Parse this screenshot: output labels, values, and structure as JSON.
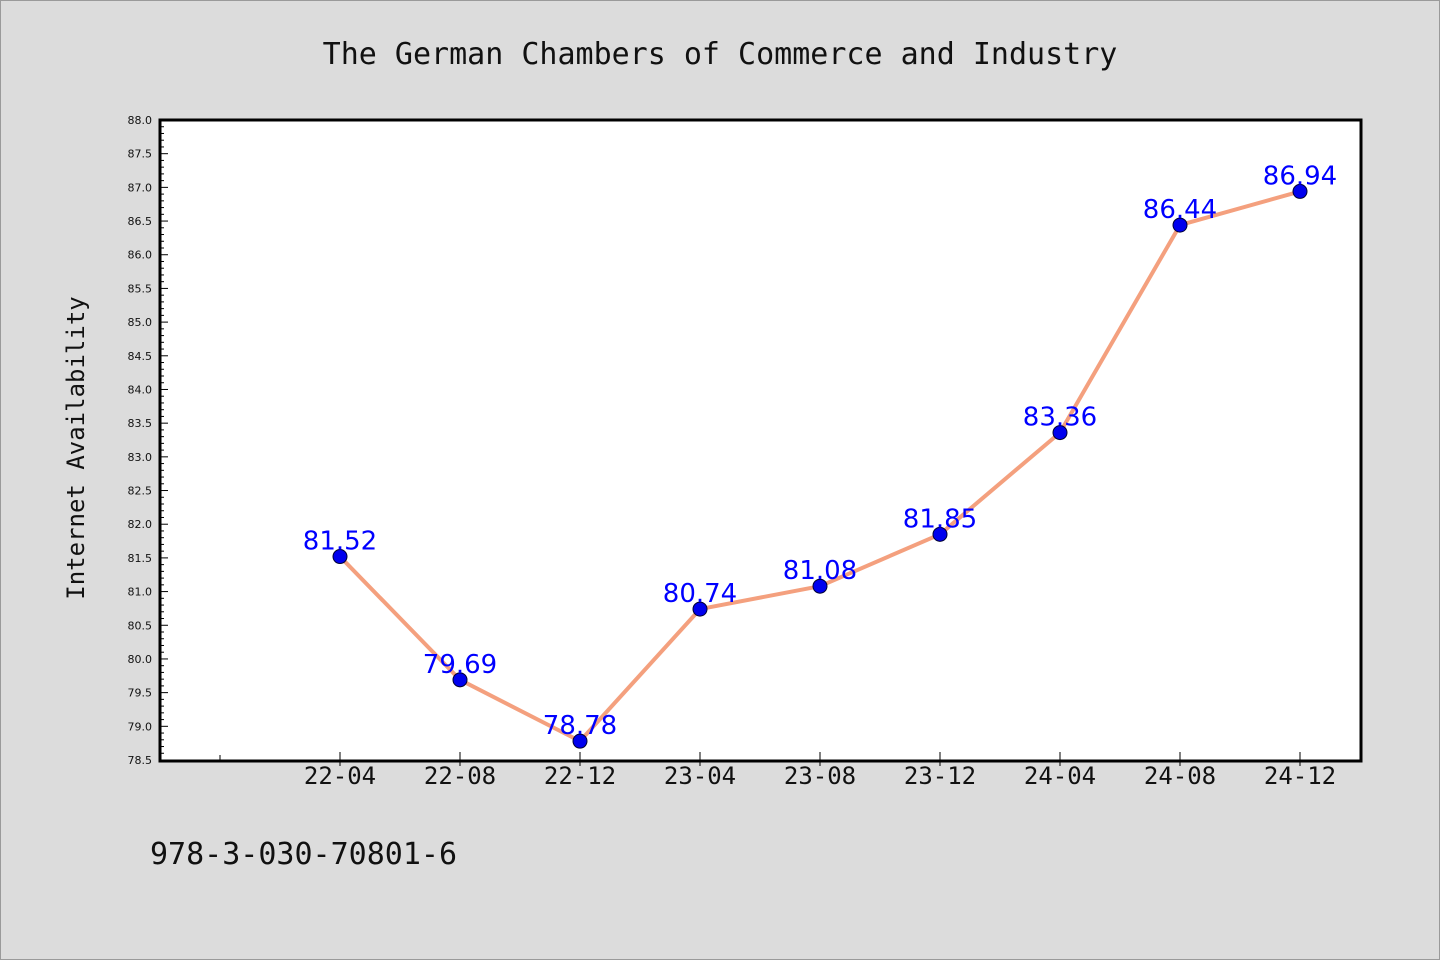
{
  "chart_data": {
    "type": "line",
    "title": "The German Chambers of Commerce and Industry",
    "xlabel": "",
    "ylabel": "Internet Availability",
    "categories": [
      "22-04",
      "22-08",
      "22-12",
      "23-04",
      "23-08",
      "23-12",
      "24-04",
      "24-08",
      "24-12"
    ],
    "series": [
      {
        "values": [
          81.52,
          79.69,
          78.78,
          80.74,
          81.08,
          81.85,
          83.36,
          86.44,
          86.94
        ],
        "data_labels": [
          "81.52",
          "79.69",
          "78.78",
          "80.74",
          "81.08",
          "81.85",
          "83.36",
          "86.44",
          "86.94"
        ],
        "line_color": "#f4a07e",
        "marker_color": "#0000ee",
        "label_color": "#0000ff"
      }
    ],
    "ylim": [
      78.5,
      88.0
    ],
    "yticks": [
      "78.5",
      "79.0",
      "79.5",
      "80.0",
      "80.5",
      "81.0",
      "81.5",
      "82.0",
      "82.5",
      "83.0",
      "83.5",
      "84.0",
      "84.5",
      "85.0",
      "85.5",
      "86.0",
      "86.5",
      "87.0",
      "87.5",
      "88.0"
    ],
    "grid": false,
    "legend": "none"
  },
  "footnote": "978-3-030-70801-6",
  "colors": {
    "background": "#dcdcdc",
    "plot_area": "#ffffff",
    "axis": "#000000"
  }
}
